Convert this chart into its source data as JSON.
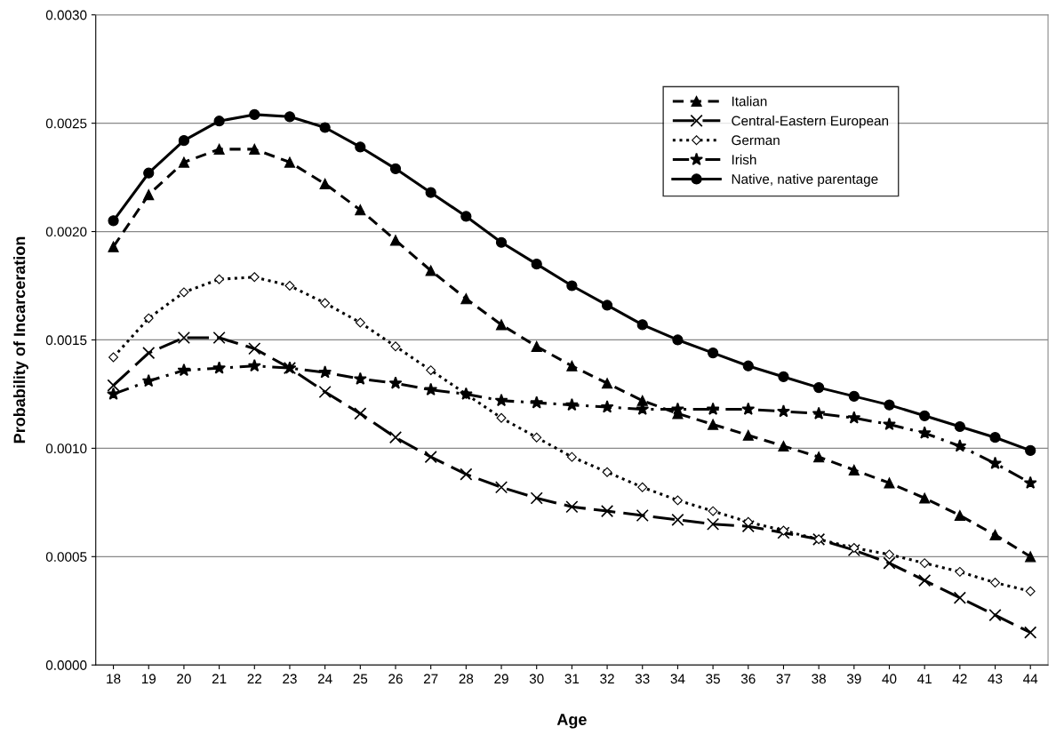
{
  "chart_data": {
    "type": "line",
    "xlabel": "Age",
    "ylabel": "Probability of Incarceration",
    "categories": [
      "18",
      "19",
      "20",
      "21",
      "22",
      "23",
      "24",
      "25",
      "26",
      "27",
      "28",
      "29",
      "30",
      "31",
      "32",
      "33",
      "34",
      "35",
      "36",
      "37",
      "38",
      "39",
      "40",
      "41",
      "42",
      "43",
      "44"
    ],
    "ylim": [
      0,
      0.003
    ],
    "yticks": [
      {
        "value": 0,
        "label": "0.0000"
      },
      {
        "value": 0.0005,
        "label": "0.0005"
      },
      {
        "value": 0.001,
        "label": "0.0010"
      },
      {
        "value": 0.0015,
        "label": "0.0015"
      },
      {
        "value": 0.002,
        "label": "0.0020"
      },
      {
        "value": 0.0025,
        "label": "0.0025"
      },
      {
        "value": 0.003,
        "label": "0.0030"
      }
    ],
    "grid": "y",
    "legend": "top right",
    "series": [
      {
        "name": "Italian",
        "color": "#000000",
        "marker": "triangle",
        "line_style": "dashed",
        "values": [
          0.00193,
          0.00217,
          0.00232,
          0.00238,
          0.00238,
          0.00232,
          0.00222,
          0.0021,
          0.00196,
          0.00182,
          0.00169,
          0.00157,
          0.00147,
          0.00138,
          0.0013,
          0.00122,
          0.00116,
          0.00111,
          0.00106,
          0.00101,
          0.00096,
          0.0009,
          0.00084,
          0.00077,
          0.00069,
          0.0006,
          0.0005
        ]
      },
      {
        "name": "Central-Eastern European",
        "color": "#000000",
        "marker": "cross",
        "line_style": "longdash",
        "values": [
          0.00129,
          0.00144,
          0.00151,
          0.00151,
          0.00146,
          0.00137,
          0.00126,
          0.00116,
          0.00105,
          0.00096,
          0.00088,
          0.00082,
          0.00077,
          0.00073,
          0.00071,
          0.00069,
          0.00067,
          0.00065,
          0.00064,
          0.00061,
          0.00058,
          0.00053,
          0.00047,
          0.00039,
          0.00031,
          0.00023,
          0.00015
        ]
      },
      {
        "name": "German",
        "color": "#000000",
        "marker": "diamond",
        "line_style": "dotted",
        "values": [
          0.00142,
          0.0016,
          0.00172,
          0.00178,
          0.00179,
          0.00175,
          0.00167,
          0.00158,
          0.00147,
          0.00136,
          0.00125,
          0.00114,
          0.00105,
          0.00096,
          0.00089,
          0.00082,
          0.00076,
          0.00071,
          0.00066,
          0.00062,
          0.00058,
          0.00054,
          0.00051,
          0.00047,
          0.00043,
          0.00038,
          0.00034
        ]
      },
      {
        "name": "Irish",
        "color": "#000000",
        "marker": "star",
        "line_style": "dashdot",
        "values": [
          0.00125,
          0.00131,
          0.00136,
          0.00137,
          0.00138,
          0.00137,
          0.00135,
          0.00132,
          0.0013,
          0.00127,
          0.00125,
          0.00122,
          0.00121,
          0.0012,
          0.00119,
          0.00118,
          0.00118,
          0.00118,
          0.00118,
          0.00117,
          0.00116,
          0.00114,
          0.00111,
          0.00107,
          0.00101,
          0.00093,
          0.00084
        ]
      },
      {
        "name": "Native, native parentage",
        "color": "#000000",
        "marker": "circle",
        "line_style": "solid",
        "values": [
          0.00205,
          0.00227,
          0.00242,
          0.00251,
          0.00254,
          0.00253,
          0.00248,
          0.00239,
          0.00229,
          0.00218,
          0.00207,
          0.00195,
          0.00185,
          0.00175,
          0.00166,
          0.00157,
          0.0015,
          0.00144,
          0.00138,
          0.00133,
          0.00128,
          0.00124,
          0.0012,
          0.00115,
          0.0011,
          0.00105,
          0.00099
        ]
      }
    ]
  }
}
